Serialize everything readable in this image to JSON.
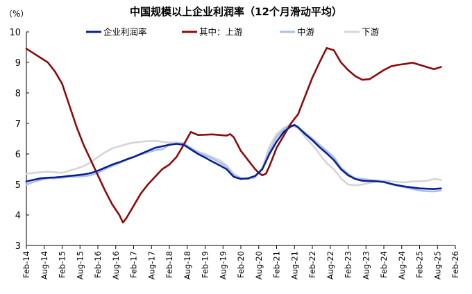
{
  "chart_data": {
    "type": "line",
    "title": "中国规模以上企业利润率（12个月滑动平均）",
    "unit_label": "（%）",
    "ylim": [
      3,
      10
    ],
    "y_ticks": [
      3,
      4,
      5,
      6,
      7,
      8,
      9,
      10
    ],
    "x_ticks": [
      "Feb-14",
      "Aug-14",
      "Feb-15",
      "Aug-15",
      "Feb-16",
      "Aug-16",
      "Feb-17",
      "Aug-17",
      "Feb-18",
      "Aug-18",
      "Feb-19",
      "Aug-19",
      "Feb-20",
      "Aug-20",
      "Feb-21",
      "Aug-21",
      "Feb-22",
      "Aug-22",
      "Feb-23",
      "Aug-23",
      "Feb-24",
      "Aug-24",
      "Feb-25",
      "Aug-25",
      "Feb-26"
    ],
    "grid": false,
    "legend_position": "top",
    "series": [
      {
        "name": "企业利润率",
        "color": "#0a1f8f",
        "points": [
          [
            0,
            5.1
          ],
          [
            2,
            5.15
          ],
          [
            4,
            5.2
          ],
          [
            6,
            5.22
          ],
          [
            8,
            5.23
          ],
          [
            10,
            5.25
          ],
          [
            12,
            5.28
          ],
          [
            14,
            5.3
          ],
          [
            16,
            5.33
          ],
          [
            18,
            5.37
          ],
          [
            20,
            5.45
          ],
          [
            22,
            5.55
          ],
          [
            24,
            5.65
          ],
          [
            26,
            5.73
          ],
          [
            28,
            5.82
          ],
          [
            30,
            5.9
          ],
          [
            32,
            6.0
          ],
          [
            34,
            6.1
          ],
          [
            36,
            6.2
          ],
          [
            38,
            6.25
          ],
          [
            40,
            6.3
          ],
          [
            42,
            6.33
          ],
          [
            44,
            6.3
          ],
          [
            46,
            6.15
          ],
          [
            48,
            6.0
          ],
          [
            50,
            5.88
          ],
          [
            52,
            5.75
          ],
          [
            54,
            5.63
          ],
          [
            56,
            5.5
          ],
          [
            58,
            5.25
          ],
          [
            60,
            5.18
          ],
          [
            62,
            5.2
          ],
          [
            64,
            5.28
          ],
          [
            66,
            5.5
          ],
          [
            68,
            6.0
          ],
          [
            70,
            6.4
          ],
          [
            72,
            6.72
          ],
          [
            74,
            6.9
          ],
          [
            75,
            6.95
          ],
          [
            76,
            6.88
          ],
          [
            78,
            6.65
          ],
          [
            80,
            6.45
          ],
          [
            82,
            6.22
          ],
          [
            84,
            6.02
          ],
          [
            86,
            5.8
          ],
          [
            88,
            5.5
          ],
          [
            90,
            5.3
          ],
          [
            92,
            5.18
          ],
          [
            94,
            5.12
          ],
          [
            96,
            5.11
          ],
          [
            98,
            5.1
          ],
          [
            100,
            5.08
          ],
          [
            102,
            5.02
          ],
          [
            104,
            4.97
          ],
          [
            106,
            4.93
          ],
          [
            108,
            4.9
          ],
          [
            110,
            4.87
          ],
          [
            112,
            4.86
          ],
          [
            114,
            4.85
          ],
          [
            116,
            4.87
          ]
        ]
      },
      {
        "name": "其中：上游",
        "color": "#8b0a0a",
        "points": [
          [
            0,
            9.45
          ],
          [
            2,
            9.3
          ],
          [
            4,
            9.15
          ],
          [
            6,
            9.0
          ],
          [
            8,
            8.7
          ],
          [
            10,
            8.3
          ],
          [
            12,
            7.6
          ],
          [
            14,
            6.9
          ],
          [
            16,
            6.3
          ],
          [
            18,
            5.8
          ],
          [
            20,
            5.3
          ],
          [
            22,
            4.8
          ],
          [
            24,
            4.35
          ],
          [
            26,
            4.0
          ],
          [
            27,
            3.75
          ],
          [
            28,
            3.9
          ],
          [
            30,
            4.3
          ],
          [
            32,
            4.7
          ],
          [
            34,
            5.0
          ],
          [
            36,
            5.25
          ],
          [
            38,
            5.5
          ],
          [
            40,
            5.65
          ],
          [
            42,
            5.9
          ],
          [
            44,
            6.3
          ],
          [
            46,
            6.72
          ],
          [
            48,
            6.62
          ],
          [
            50,
            6.63
          ],
          [
            52,
            6.64
          ],
          [
            54,
            6.62
          ],
          [
            56,
            6.6
          ],
          [
            57,
            6.65
          ],
          [
            58,
            6.55
          ],
          [
            60,
            6.1
          ],
          [
            62,
            5.8
          ],
          [
            64,
            5.5
          ],
          [
            65,
            5.38
          ],
          [
            66,
            5.3
          ],
          [
            67,
            5.35
          ],
          [
            68,
            5.6
          ],
          [
            70,
            6.2
          ],
          [
            72,
            6.6
          ],
          [
            74,
            7.0
          ],
          [
            76,
            7.3
          ],
          [
            78,
            7.9
          ],
          [
            80,
            8.5
          ],
          [
            82,
            9.0
          ],
          [
            84,
            9.47
          ],
          [
            86,
            9.4
          ],
          [
            88,
            9.0
          ],
          [
            90,
            8.75
          ],
          [
            92,
            8.55
          ],
          [
            94,
            8.43
          ],
          [
            96,
            8.45
          ],
          [
            98,
            8.6
          ],
          [
            100,
            8.75
          ],
          [
            102,
            8.87
          ],
          [
            104,
            8.92
          ],
          [
            106,
            8.95
          ],
          [
            108,
            8.99
          ],
          [
            110,
            8.92
          ],
          [
            112,
            8.85
          ],
          [
            114,
            8.78
          ],
          [
            116,
            8.85
          ]
        ]
      },
      {
        "name": "中游",
        "color": "#aac0e8",
        "points": [
          [
            0,
            5.0
          ],
          [
            2,
            5.08
          ],
          [
            4,
            5.15
          ],
          [
            6,
            5.2
          ],
          [
            8,
            5.2
          ],
          [
            10,
            5.22
          ],
          [
            12,
            5.25
          ],
          [
            14,
            5.25
          ],
          [
            16,
            5.27
          ],
          [
            18,
            5.3
          ],
          [
            20,
            5.38
          ],
          [
            22,
            5.5
          ],
          [
            24,
            5.6
          ],
          [
            26,
            5.7
          ],
          [
            28,
            5.8
          ],
          [
            30,
            5.9
          ],
          [
            32,
            5.98
          ],
          [
            34,
            6.05
          ],
          [
            36,
            6.12
          ],
          [
            38,
            6.15
          ],
          [
            40,
            6.3
          ],
          [
            42,
            6.35
          ],
          [
            44,
            6.35
          ],
          [
            46,
            6.2
          ],
          [
            48,
            6.05
          ],
          [
            50,
            5.95
          ],
          [
            52,
            5.85
          ],
          [
            54,
            5.72
          ],
          [
            56,
            5.58
          ],
          [
            58,
            5.3
          ],
          [
            60,
            5.2
          ],
          [
            62,
            5.17
          ],
          [
            64,
            5.25
          ],
          [
            66,
            5.5
          ],
          [
            68,
            6.1
          ],
          [
            70,
            6.55
          ],
          [
            72,
            6.8
          ],
          [
            74,
            6.95
          ],
          [
            76,
            6.85
          ],
          [
            78,
            6.7
          ],
          [
            80,
            6.5
          ],
          [
            82,
            6.3
          ],
          [
            84,
            6.1
          ],
          [
            86,
            5.9
          ],
          [
            88,
            5.55
          ],
          [
            90,
            5.35
          ],
          [
            92,
            5.2
          ],
          [
            94,
            5.18
          ],
          [
            96,
            5.15
          ],
          [
            98,
            5.13
          ],
          [
            100,
            5.1
          ],
          [
            102,
            5.0
          ],
          [
            104,
            4.95
          ],
          [
            106,
            4.9
          ],
          [
            108,
            4.85
          ],
          [
            110,
            4.8
          ],
          [
            112,
            4.78
          ],
          [
            114,
            4.77
          ],
          [
            116,
            4.8
          ]
        ]
      },
      {
        "name": "下游",
        "color": "#d5d5d5",
        "points": [
          [
            0,
            5.35
          ],
          [
            2,
            5.38
          ],
          [
            4,
            5.4
          ],
          [
            6,
            5.42
          ],
          [
            8,
            5.4
          ],
          [
            10,
            5.38
          ],
          [
            12,
            5.45
          ],
          [
            14,
            5.52
          ],
          [
            16,
            5.6
          ],
          [
            18,
            5.72
          ],
          [
            20,
            5.9
          ],
          [
            22,
            6.05
          ],
          [
            24,
            6.18
          ],
          [
            26,
            6.25
          ],
          [
            28,
            6.32
          ],
          [
            30,
            6.37
          ],
          [
            32,
            6.4
          ],
          [
            34,
            6.42
          ],
          [
            36,
            6.43
          ],
          [
            38,
            6.4
          ],
          [
            40,
            6.37
          ],
          [
            42,
            6.38
          ],
          [
            44,
            6.32
          ],
          [
            46,
            6.2
          ],
          [
            48,
            6.07
          ],
          [
            50,
            6.0
          ],
          [
            52,
            5.9
          ],
          [
            54,
            5.8
          ],
          [
            56,
            5.63
          ],
          [
            58,
            5.35
          ],
          [
            60,
            5.22
          ],
          [
            62,
            5.18
          ],
          [
            64,
            5.22
          ],
          [
            66,
            5.55
          ],
          [
            68,
            6.25
          ],
          [
            70,
            6.65
          ],
          [
            72,
            6.85
          ],
          [
            74,
            6.98
          ],
          [
            76,
            6.85
          ],
          [
            78,
            6.55
          ],
          [
            80,
            6.3
          ],
          [
            82,
            6.0
          ],
          [
            84,
            5.7
          ],
          [
            86,
            5.5
          ],
          [
            88,
            5.2
          ],
          [
            90,
            5.0
          ],
          [
            92,
            4.97
          ],
          [
            94,
            5.0
          ],
          [
            96,
            5.05
          ],
          [
            98,
            5.1
          ],
          [
            100,
            5.12
          ],
          [
            102,
            5.1
          ],
          [
            104,
            5.08
          ],
          [
            106,
            5.07
          ],
          [
            108,
            5.1
          ],
          [
            110,
            5.1
          ],
          [
            112,
            5.12
          ],
          [
            114,
            5.18
          ],
          [
            116,
            5.15
          ]
        ]
      }
    ]
  }
}
